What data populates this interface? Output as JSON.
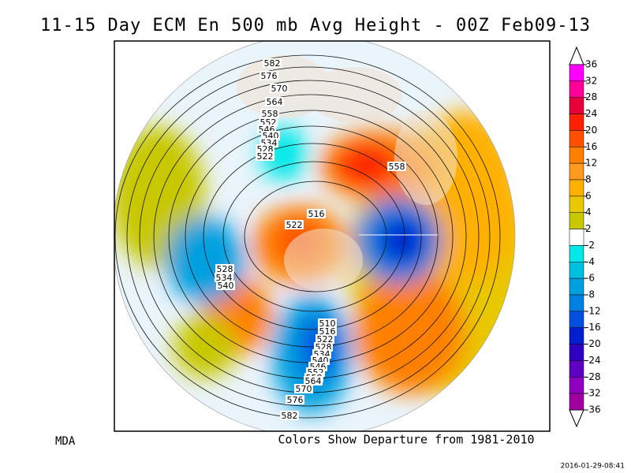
{
  "title": "11-15 Day ECM En 500 mb Avg Height - 00Z Feb09-13",
  "contour_labels": [
    "582",
    "576",
    "570",
    "564",
    "558",
    "552",
    "546",
    "540",
    "534",
    "528",
    "522",
    "558",
    "516",
    "522",
    "528",
    "534",
    "540",
    "510",
    "516",
    "522",
    "528",
    "534",
    "540",
    "546",
    "552",
    "558",
    "564",
    "570",
    "576",
    "582"
  ],
  "colorbar": {
    "labels": [
      36,
      32,
      28,
      24,
      20,
      16,
      12,
      8,
      6,
      4,
      2,
      -2,
      -4,
      -6,
      -8,
      -12,
      -16,
      -20,
      -24,
      -28,
      -32,
      -36
    ],
    "colors": [
      "#ff00ff",
      "#ff0099",
      "#e8003a",
      "#ff2000",
      "#ff5000",
      "#ff8000",
      "#ff9a20",
      "#ffb000",
      "#e8c800",
      "#c8c800",
      "#ffffff",
      "#00e8e8",
      "#00c0e0",
      "#00a0e0",
      "#0080e0",
      "#0050e0",
      "#0020d0",
      "#3000c0",
      "#6000c0",
      "#9000c0",
      "#a000a0"
    ]
  },
  "footer": {
    "left": "MDA",
    "center": "Colors Show Departure from 1981-2010",
    "timestamp": "2016-01-29-08:41"
  }
}
